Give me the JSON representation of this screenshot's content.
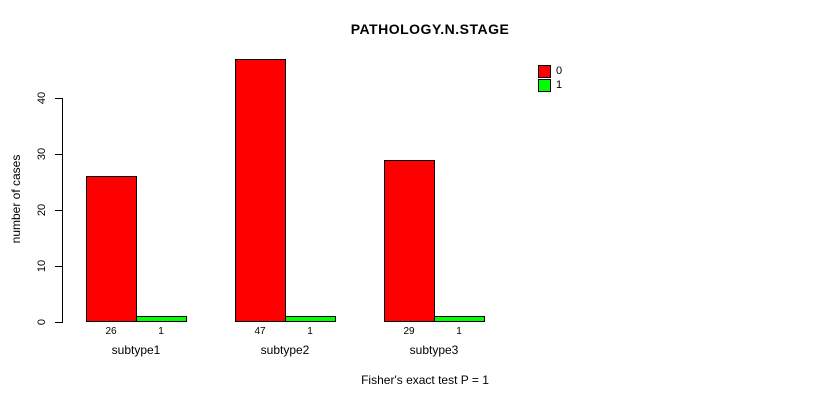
{
  "title": "PATHOLOGY.N.STAGE",
  "footer": "Fisher's exact test P = 1",
  "colors": {
    "series0": "#ff0000",
    "series1": "#00ff00",
    "axis": "#000000",
    "background": "#ffffff"
  },
  "chart_data": {
    "type": "bar",
    "title": "PATHOLOGY.N.STAGE",
    "xlabel": "",
    "ylabel": "number of cases",
    "categories": [
      "subtype1",
      "subtype2",
      "subtype3"
    ],
    "series": [
      {
        "name": "0",
        "color": "#ff0000",
        "values": [
          26,
          47,
          29
        ]
      },
      {
        "name": "1",
        "color": "#00ff00",
        "values": [
          1,
          1,
          1
        ]
      }
    ],
    "bar_value_labels": [
      [
        "26",
        "1"
      ],
      [
        "47",
        "1"
      ],
      [
        "29",
        "1"
      ]
    ],
    "ylim": [
      0,
      40
    ],
    "yticks": [
      0,
      10,
      20,
      30,
      40
    ],
    "grid": false,
    "legend_position": "top-right",
    "legend_entries": [
      {
        "label": "0",
        "color": "#ff0000"
      },
      {
        "label": "1",
        "color": "#00ff00"
      }
    ],
    "annotation": "Fisher's exact test P = 1"
  }
}
